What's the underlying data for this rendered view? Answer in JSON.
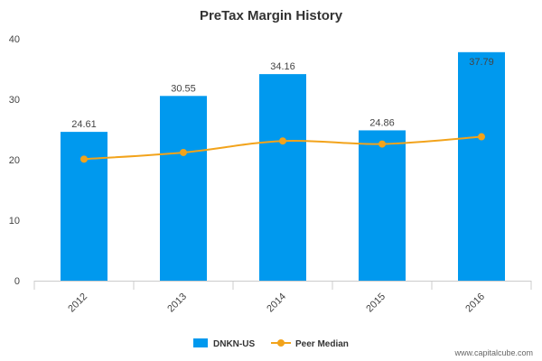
{
  "chart_data": {
    "type": "bar",
    "title": "PreTax Margin History",
    "categories": [
      "2012",
      "2013",
      "2014",
      "2015",
      "2016"
    ],
    "ylim": [
      0,
      40
    ],
    "yticks": [
      0,
      10,
      20,
      30,
      40
    ],
    "grid": false,
    "legend_position": "bottom",
    "series": [
      {
        "name": "DNKN-US",
        "type": "bar",
        "color": "#0099ee",
        "values": [
          24.61,
          30.55,
          34.16,
          24.86,
          37.79
        ],
        "labels": [
          "24.61",
          "30.55",
          "34.16",
          "24.86",
          "37.79"
        ]
      },
      {
        "name": "Peer Median",
        "type": "line",
        "color": "#f2a31b",
        "values": [
          20.1,
          21.2,
          23.1,
          22.6,
          23.8
        ]
      }
    ]
  },
  "credit": "www.capitalcube.com"
}
